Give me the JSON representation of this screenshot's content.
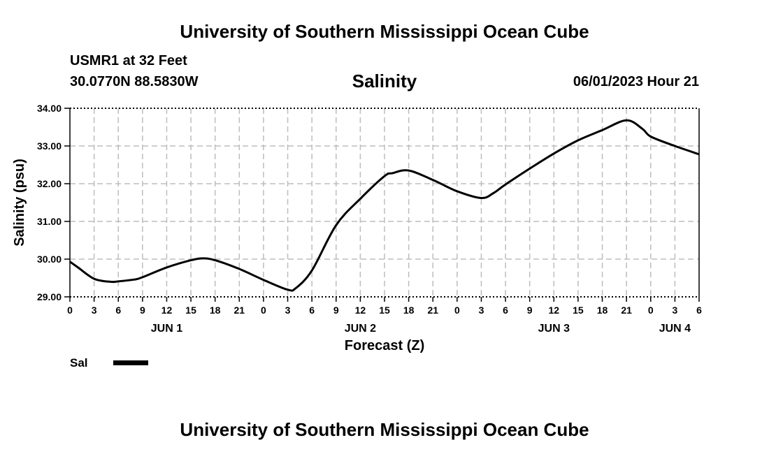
{
  "header": {
    "title": "University of Southern Mississippi Ocean Cube",
    "station": "USMR1 at 32 Feet",
    "coords": "30.0770N  88.5830W",
    "variable": "Salinity",
    "timestamp": "06/01/2023 Hour 21"
  },
  "footer": {
    "title": "University of Southern Mississippi Ocean Cube"
  },
  "legend": {
    "label": "Sal",
    "color": "#000000"
  },
  "chart_data": {
    "type": "line",
    "title": "Salinity",
    "xlabel": "Forecast (Z)",
    "ylabel": "Salinity (psu)",
    "xlim": [
      0,
      78
    ],
    "ylim": [
      29.0,
      34.0
    ],
    "grid": true,
    "yticks": [
      "29.00",
      "30.00",
      "31.00",
      "32.00",
      "33.00",
      "34.00"
    ],
    "xtick_labels": [
      "0",
      "3",
      "6",
      "9",
      "12",
      "15",
      "18",
      "21",
      "0",
      "3",
      "6",
      "9",
      "12",
      "15",
      "18",
      "21",
      "0",
      "3",
      "6",
      "9",
      "12",
      "15",
      "18",
      "21",
      "0",
      "3",
      "6"
    ],
    "day_labels": [
      {
        "label": "JUN 1",
        "at_hour": 12
      },
      {
        "label": "JUN 2",
        "at_hour": 36
      },
      {
        "label": "JUN 3",
        "at_hour": 60
      },
      {
        "label": "JUN 4",
        "at_hour": 75
      }
    ],
    "series": [
      {
        "name": "Sal",
        "x": [
          0,
          1,
          3,
          5,
          6,
          8,
          9,
          12,
          15,
          16.5,
          18,
          21,
          24,
          27,
          28,
          30,
          33,
          36,
          39,
          40,
          42,
          45,
          48,
          51,
          52.5,
          54,
          57,
          60,
          63,
          66,
          69,
          71,
          72,
          75,
          78
        ],
        "values": [
          29.93,
          29.78,
          29.48,
          29.4,
          29.41,
          29.46,
          29.52,
          29.78,
          29.97,
          30.02,
          29.97,
          29.74,
          29.45,
          29.19,
          29.23,
          29.7,
          30.9,
          31.6,
          32.2,
          32.28,
          32.35,
          32.1,
          31.8,
          31.62,
          31.75,
          31.98,
          32.4,
          32.8,
          33.15,
          33.42,
          33.68,
          33.45,
          33.25,
          33.0,
          32.78
        ]
      }
    ]
  }
}
